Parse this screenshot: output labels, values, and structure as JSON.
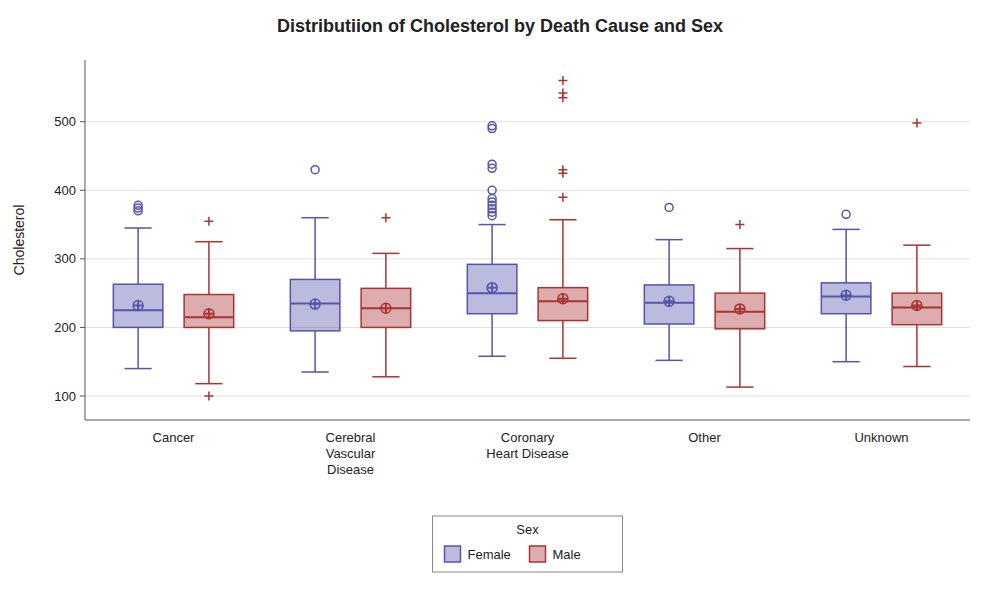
{
  "chart_data": {
    "type": "box",
    "title": "Distributiion of Cholesterol by Death Cause and Sex",
    "ylabel": "Cholesterol",
    "categories": [
      "Cancer",
      "Cerebral\nVascular\nDisease",
      "Coronary\nHeart Disease",
      "Other",
      "Unknown"
    ],
    "ylim": [
      65,
      590
    ],
    "yticks": [
      100,
      200,
      300,
      400,
      500
    ],
    "grid": true,
    "legend": "bottom",
    "legend_title": "Sex",
    "series": [
      {
        "name": "Female",
        "color": "#5555AA",
        "marker": "circle",
        "values": [
          {
            "whishi": 345,
            "q3": 263,
            "med": 225,
            "q1": 200,
            "whislo": 140,
            "mean": 232,
            "fliers": [
              370,
              374,
              378
            ]
          },
          {
            "whishi": 360,
            "q3": 270,
            "med": 235,
            "q1": 195,
            "whislo": 135,
            "mean": 234,
            "fliers": [
              430
            ]
          },
          {
            "whishi": 350,
            "q3": 292,
            "med": 250,
            "q1": 220,
            "whislo": 158,
            "mean": 258,
            "fliers": [
              363,
              368,
              373,
              378,
              383,
              388,
              400,
              432,
              438,
              490,
              494
            ]
          },
          {
            "whishi": 328,
            "q3": 262,
            "med": 236,
            "q1": 205,
            "whislo": 152,
            "mean": 238,
            "fliers": [
              375
            ]
          },
          {
            "whishi": 343,
            "q3": 265,
            "med": 245,
            "q1": 220,
            "whislo": 150,
            "mean": 247,
            "fliers": [
              365
            ]
          }
        ]
      },
      {
        "name": "Male",
        "color": "#AA3333",
        "marker": "plus",
        "values": [
          {
            "whishi": 325,
            "q3": 248,
            "med": 215,
            "q1": 200,
            "whislo": 118,
            "mean": 220,
            "fliers": [
              355,
              100
            ]
          },
          {
            "whishi": 308,
            "q3": 257,
            "med": 228,
            "q1": 200,
            "whislo": 128,
            "mean": 228,
            "fliers": [
              360
            ]
          },
          {
            "whishi": 357,
            "q3": 258,
            "med": 238,
            "q1": 210,
            "whislo": 155,
            "mean": 242,
            "fliers": [
              390,
              425,
              430,
              535,
              542,
              560
            ]
          },
          {
            "whishi": 315,
            "q3": 250,
            "med": 223,
            "q1": 198,
            "whislo": 113,
            "mean": 227,
            "fliers": [
              350
            ]
          },
          {
            "whishi": 320,
            "q3": 250,
            "med": 229,
            "q1": 204,
            "whislo": 143,
            "mean": 232,
            "fliers": [
              498
            ]
          }
        ]
      }
    ]
  }
}
